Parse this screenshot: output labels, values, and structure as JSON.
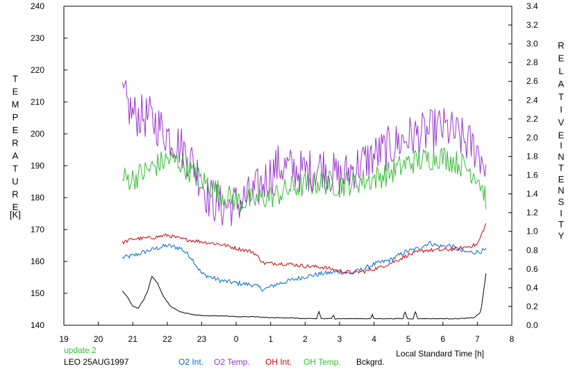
{
  "chart_data": {
    "type": "line",
    "y_left": {
      "label_letters": [
        "T",
        "E",
        "M",
        "P",
        "E",
        "R",
        "A",
        "T",
        "U",
        "R",
        "E"
      ],
      "unit": "[K]",
      "range": [
        140,
        240
      ],
      "ticks": [
        140,
        150,
        160,
        170,
        180,
        190,
        200,
        210,
        220,
        230,
        240
      ]
    },
    "y_right": {
      "label_letters": [
        "R",
        "E",
        "L",
        "A",
        "T",
        "I",
        "V",
        "E"
      ],
      "label_letters_2": [
        "I",
        "N",
        "T",
        "E",
        "N",
        "S",
        "I",
        "T",
        "Y"
      ],
      "range": [
        0.0,
        3.4
      ],
      "ticks": [
        "0.0",
        "0.2",
        "0.4",
        "0.6",
        "0.8",
        "1.0",
        "1.2",
        "1.4",
        "1.6",
        "1.8",
        "2.0",
        "2.2",
        "2.4",
        "2.6",
        "2.8",
        "3.0",
        "3.2",
        "3.4"
      ]
    },
    "x_axis": {
      "label": "Local Standard Time [h]",
      "range": [
        19,
        32
      ],
      "tick_labels": [
        "19",
        "20",
        "21",
        "22",
        "23",
        "0",
        "1",
        "2",
        "3",
        "4",
        "5",
        "6",
        "7",
        "8"
      ]
    },
    "update_text": "update 2",
    "site_date": "LEO 25AUG1997",
    "series": [
      {
        "name": "O2 Int.",
        "axis": "right",
        "color": "#0066cc",
        "noise": 0.025,
        "points": [
          [
            20.7,
            0.72
          ],
          [
            21.0,
            0.74
          ],
          [
            21.5,
            0.8
          ],
          [
            22.0,
            0.85
          ],
          [
            22.4,
            0.82
          ],
          [
            22.7,
            0.72
          ],
          [
            23.0,
            0.55
          ],
          [
            23.5,
            0.48
          ],
          [
            24.0,
            0.45
          ],
          [
            24.5,
            0.43
          ],
          [
            24.8,
            0.38
          ],
          [
            25.2,
            0.44
          ],
          [
            25.6,
            0.48
          ],
          [
            26.0,
            0.52
          ],
          [
            26.5,
            0.55
          ],
          [
            27.0,
            0.57
          ],
          [
            27.3,
            0.55
          ],
          [
            27.7,
            0.6
          ],
          [
            28.0,
            0.65
          ],
          [
            28.5,
            0.7
          ],
          [
            28.9,
            0.78
          ],
          [
            29.3,
            0.82
          ],
          [
            29.6,
            0.88
          ],
          [
            29.9,
            0.84
          ],
          [
            30.2,
            0.85
          ],
          [
            30.6,
            0.78
          ],
          [
            31.0,
            0.78
          ],
          [
            31.25,
            0.8
          ]
        ]
      },
      {
        "name": "O2 Temp.",
        "axis": "left",
        "color": "#9933cc",
        "noise": 7,
        "points": [
          [
            20.7,
            212
          ],
          [
            21.0,
            206
          ],
          [
            21.5,
            205
          ],
          [
            22.0,
            200
          ],
          [
            22.4,
            196
          ],
          [
            22.8,
            190
          ],
          [
            23.2,
            180
          ],
          [
            23.6,
            177
          ],
          [
            24.0,
            178
          ],
          [
            24.5,
            181
          ],
          [
            24.8,
            185
          ],
          [
            25.2,
            190
          ],
          [
            25.6,
            189
          ],
          [
            26.0,
            188
          ],
          [
            26.5,
            190
          ],
          [
            27.0,
            186
          ],
          [
            27.5,
            190
          ],
          [
            28.0,
            193
          ],
          [
            28.5,
            196
          ],
          [
            29.0,
            199
          ],
          [
            29.5,
            200
          ],
          [
            29.9,
            202
          ],
          [
            30.2,
            201
          ],
          [
            30.6,
            198
          ],
          [
            31.0,
            195
          ],
          [
            31.25,
            190
          ]
        ]
      },
      {
        "name": "OH Int.",
        "axis": "right",
        "color": "#cc0000",
        "noise": 0.02,
        "points": [
          [
            20.7,
            0.88
          ],
          [
            21.0,
            0.92
          ],
          [
            21.5,
            0.93
          ],
          [
            22.0,
            0.96
          ],
          [
            22.4,
            0.92
          ],
          [
            22.8,
            0.9
          ],
          [
            23.2,
            0.88
          ],
          [
            23.6,
            0.86
          ],
          [
            24.0,
            0.82
          ],
          [
            24.5,
            0.78
          ],
          [
            24.8,
            0.66
          ],
          [
            25.2,
            0.66
          ],
          [
            25.6,
            0.65
          ],
          [
            26.0,
            0.63
          ],
          [
            26.5,
            0.62
          ],
          [
            27.0,
            0.58
          ],
          [
            27.4,
            0.56
          ],
          [
            27.8,
            0.58
          ],
          [
            28.2,
            0.62
          ],
          [
            28.6,
            0.68
          ],
          [
            29.0,
            0.75
          ],
          [
            29.5,
            0.8
          ],
          [
            30.0,
            0.8
          ],
          [
            30.5,
            0.82
          ],
          [
            31.0,
            0.86
          ],
          [
            31.25,
            1.08
          ]
        ]
      },
      {
        "name": "OH Temp.",
        "axis": "left",
        "color": "#33bb33",
        "noise": 4,
        "points": [
          [
            20.7,
            186
          ],
          [
            21.0,
            186
          ],
          [
            21.5,
            189
          ],
          [
            22.0,
            192
          ],
          [
            22.4,
            191
          ],
          [
            22.8,
            187
          ],
          [
            23.2,
            184
          ],
          [
            23.6,
            181
          ],
          [
            24.0,
            179
          ],
          [
            24.5,
            179
          ],
          [
            24.8,
            180
          ],
          [
            25.2,
            181
          ],
          [
            25.6,
            183
          ],
          [
            26.0,
            184
          ],
          [
            26.5,
            185
          ],
          [
            27.0,
            184
          ],
          [
            27.5,
            185
          ],
          [
            28.0,
            186
          ],
          [
            28.5,
            188
          ],
          [
            29.0,
            191
          ],
          [
            29.5,
            192
          ],
          [
            29.9,
            193
          ],
          [
            30.2,
            192
          ],
          [
            30.6,
            190
          ],
          [
            31.0,
            187
          ],
          [
            31.25,
            180
          ]
        ]
      },
      {
        "name": "Bckgrd.",
        "axis": "right",
        "color": "#000000",
        "noise": 0.004,
        "points": [
          [
            20.7,
            0.36
          ],
          [
            20.85,
            0.3
          ],
          [
            21.0,
            0.2
          ],
          [
            21.15,
            0.18
          ],
          [
            21.3,
            0.26
          ],
          [
            21.45,
            0.38
          ],
          [
            21.55,
            0.52
          ],
          [
            21.7,
            0.46
          ],
          [
            21.9,
            0.3
          ],
          [
            22.1,
            0.2
          ],
          [
            22.4,
            0.14
          ],
          [
            22.8,
            0.11
          ],
          [
            23.2,
            0.1
          ],
          [
            23.6,
            0.1
          ],
          [
            24.0,
            0.09
          ],
          [
            24.5,
            0.09
          ],
          [
            25.0,
            0.08
          ],
          [
            25.5,
            0.08
          ],
          [
            26.0,
            0.07
          ],
          [
            26.5,
            0.07
          ],
          [
            27.0,
            0.07
          ],
          [
            27.5,
            0.07
          ],
          [
            28.0,
            0.07
          ],
          [
            28.5,
            0.07
          ],
          [
            29.0,
            0.07
          ],
          [
            29.5,
            0.07
          ],
          [
            30.0,
            0.07
          ],
          [
            30.5,
            0.07
          ],
          [
            30.9,
            0.08
          ],
          [
            31.1,
            0.14
          ],
          [
            31.25,
            0.55
          ]
        ],
        "spikes": [
          [
            26.4,
            0.15
          ],
          [
            26.82,
            0.12
          ],
          [
            27.95,
            0.12
          ],
          [
            28.9,
            0.15
          ],
          [
            29.2,
            0.15
          ]
        ]
      }
    ]
  }
}
